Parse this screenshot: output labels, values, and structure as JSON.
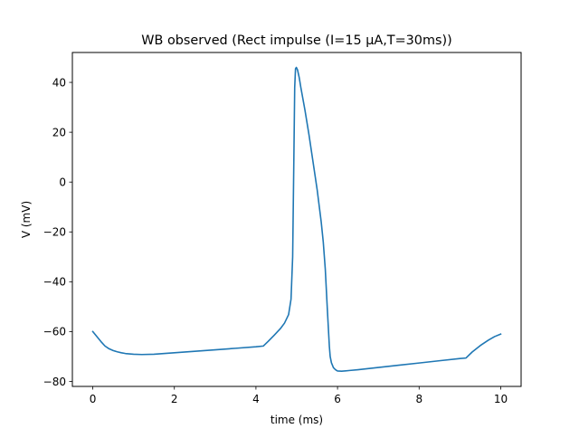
{
  "chart_data": {
    "type": "line",
    "title": "WB observed (Rect impulse (I=15 µA,T=30ms))",
    "xlabel": "time (ms)",
    "ylabel": "V (mV)",
    "xlim": [
      -0.5,
      10.5
    ],
    "ylim": [
      -82,
      52
    ],
    "xticks": [
      0,
      2,
      4,
      6,
      8,
      10
    ],
    "xtick_labels": [
      "0",
      "2",
      "4",
      "6",
      "8",
      "10"
    ],
    "yticks": [
      -80,
      -60,
      -40,
      -20,
      0,
      20,
      40
    ],
    "ytick_labels": [
      "−80",
      "−60",
      "−40",
      "−20",
      "0",
      "20",
      "40"
    ],
    "grid": false,
    "series": [
      {
        "name": "V",
        "color": "#1f77b4",
        "x": [
          0,
          0.1,
          0.2,
          0.3,
          0.4,
          0.5,
          0.6,
          0.7,
          0.8,
          1.0,
          1.2,
          1.5,
          2.0,
          2.5,
          3.0,
          3.5,
          4.0,
          4.18,
          4.3,
          4.45,
          4.6,
          4.7,
          4.8,
          4.86,
          4.9,
          4.93,
          4.95,
          4.97,
          4.99,
          5.02,
          5.06,
          5.1,
          5.2,
          5.3,
          5.4,
          5.5,
          5.6,
          5.65,
          5.7,
          5.75,
          5.8,
          5.82,
          5.85,
          5.9,
          5.95,
          6.0,
          6.1,
          6.3,
          6.5,
          7.0,
          7.5,
          8.0,
          8.5,
          9.0,
          9.15,
          9.3,
          9.5,
          9.7,
          9.85,
          10.0
        ],
        "values": [
          -60,
          -62,
          -64,
          -65.8,
          -66.9,
          -67.6,
          -68.1,
          -68.5,
          -68.8,
          -69.1,
          -69.2,
          -69.1,
          -68.5,
          -67.9,
          -67.3,
          -66.7,
          -66.1,
          -65.8,
          -63.9,
          -61.4,
          -58.8,
          -56.6,
          -53.2,
          -47,
          -30,
          10,
          38,
          45.5,
          46,
          45,
          42,
          38,
          29,
          19,
          8,
          -3,
          -16,
          -24,
          -35,
          -51,
          -66,
          -70,
          -72.5,
          -74.5,
          -75.3,
          -75.8,
          -75.9,
          -75.6,
          -75.3,
          -74.4,
          -73.5,
          -72.6,
          -71.7,
          -70.8,
          -70.6,
          -68.2,
          -65.6,
          -63.4,
          -62,
          -61
        ]
      }
    ]
  }
}
